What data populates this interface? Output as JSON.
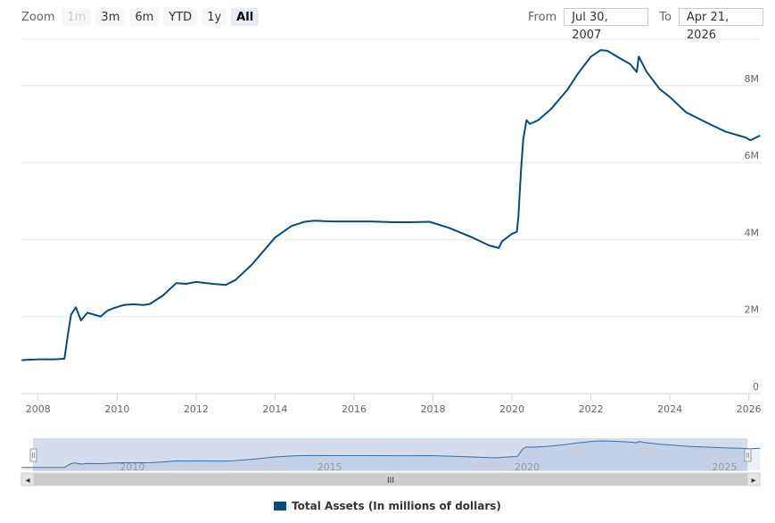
{
  "zoom": {
    "label": "Zoom",
    "buttons": [
      {
        "label": "1m",
        "state": "disabled"
      },
      {
        "label": "3m",
        "state": "normal"
      },
      {
        "label": "6m",
        "state": "normal"
      },
      {
        "label": "YTD",
        "state": "normal"
      },
      {
        "label": "1y",
        "state": "normal"
      },
      {
        "label": "All",
        "state": "selected"
      }
    ]
  },
  "range": {
    "from_label": "From",
    "from_value": "Jul 30, 2007",
    "to_label": "To",
    "to_value": "Apr 21, 2026"
  },
  "colors": {
    "series": "#0b4a7c",
    "grid": "#e6e6e6",
    "navigator_fill": "#ccd6eb",
    "scrollbar": "#e0e0e0"
  },
  "navigator": {
    "tick_labels": [
      "2010",
      "2015",
      "2020",
      "2025"
    ],
    "scrollbar_grip": "III",
    "left_arrow": "◂",
    "right_arrow": "▸"
  },
  "legend": {
    "label": "Total Assets (In millions of dollars)"
  },
  "chart_data": {
    "type": "line",
    "title": "",
    "xlabel": "",
    "ylabel": "",
    "x_ticks": [
      "2008",
      "2010",
      "2012",
      "2014",
      "2016",
      "2018",
      "2020",
      "2022",
      "2024",
      "2026"
    ],
    "y_ticks": [
      "0",
      "2M",
      "4M",
      "6M",
      "8M"
    ],
    "ylim": [
      0,
      9200000
    ],
    "xlim": [
      "2007-07-30",
      "2026-04-21"
    ],
    "grid": true,
    "legend_position": "bottom",
    "series": [
      {
        "name": "Total Assets (In millions of dollars)",
        "x": [
          "2007-08-01",
          "2008-01-01",
          "2008-06-01",
          "2008-09-01",
          "2008-10-01",
          "2008-11-01",
          "2008-12-15",
          "2009-02-01",
          "2009-04-01",
          "2009-06-01",
          "2009-08-01",
          "2009-10-01",
          "2009-12-01",
          "2010-03-01",
          "2010-06-01",
          "2010-09-01",
          "2010-11-01",
          "2011-03-01",
          "2011-07-01",
          "2011-10-01",
          "2012-01-01",
          "2012-06-01",
          "2012-10-01",
          "2013-01-01",
          "2013-06-01",
          "2013-10-01",
          "2014-01-01",
          "2014-06-01",
          "2014-10-01",
          "2015-01-01",
          "2015-06-01",
          "2016-01-01",
          "2016-06-01",
          "2017-01-01",
          "2017-06-01",
          "2017-12-01",
          "2018-06-01",
          "2019-01-01",
          "2019-06-01",
          "2019-09-01",
          "2019-10-01",
          "2020-01-01",
          "2020-02-15",
          "2020-03-01",
          "2020-03-25",
          "2020-04-15",
          "2020-05-15",
          "2020-06-15",
          "2020-09-01",
          "2021-01-01",
          "2021-06-01",
          "2021-09-01",
          "2022-01-01",
          "2022-04-01",
          "2022-06-01",
          "2022-10-01",
          "2023-01-01",
          "2023-03-01",
          "2023-03-20",
          "2023-06-01",
          "2023-10-01",
          "2024-01-01",
          "2024-06-01",
          "2025-01-01",
          "2025-06-01",
          "2025-12-01",
          "2026-01-15",
          "2026-04-15"
        ],
        "values": [
          870000,
          890000,
          890000,
          905000,
          1500000,
          2050000,
          2240000,
          1900000,
          2100000,
          2050000,
          2000000,
          2150000,
          2220000,
          2300000,
          2320000,
          2300000,
          2330000,
          2550000,
          2870000,
          2850000,
          2900000,
          2850000,
          2820000,
          2950000,
          3350000,
          3750000,
          4050000,
          4350000,
          4460000,
          4490000,
          4470000,
          4470000,
          4470000,
          4450000,
          4450000,
          4460000,
          4300000,
          4050000,
          3850000,
          3780000,
          3950000,
          4150000,
          4200000,
          4600000,
          5800000,
          6600000,
          7100000,
          7000000,
          7100000,
          7400000,
          7900000,
          8300000,
          8750000,
          8920000,
          8900000,
          8700000,
          8550000,
          8350000,
          8750000,
          8350000,
          7900000,
          7700000,
          7300000,
          7000000,
          6800000,
          6650000,
          6580000,
          6700000
        ]
      }
    ]
  }
}
